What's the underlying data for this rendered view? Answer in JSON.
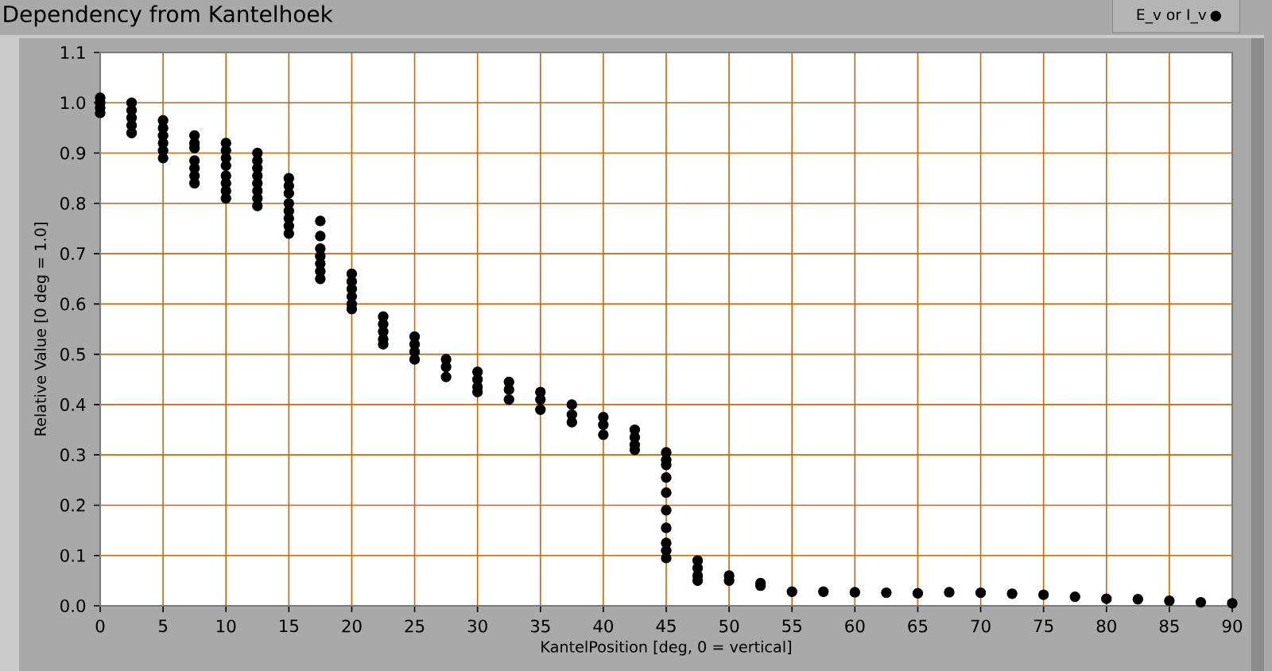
{
  "chart_data": {
    "type": "scatter",
    "title": "Dependency from Kantelhoek",
    "xlabel": "KantelPosition [deg, 0 = vertical]",
    "ylabel": "Relative Value [0 deg = 1.0]",
    "series": [
      {
        "name": "E_v or I_v",
        "color": "#000000",
        "x": [
          0,
          0,
          0,
          0,
          2.5,
          2.5,
          2.5,
          2.5,
          2.5,
          5,
          5,
          5,
          5,
          5,
          5,
          7.5,
          7.5,
          7.5,
          7.5,
          7.5,
          7.5,
          7.5,
          10,
          10,
          10,
          10,
          10,
          10,
          10,
          10,
          12.5,
          12.5,
          12.5,
          12.5,
          12.5,
          12.5,
          12.5,
          12.5,
          15,
          15,
          15,
          15,
          15,
          15,
          15,
          15,
          17.5,
          17.5,
          17.5,
          17.5,
          17.5,
          17.5,
          17.5,
          20,
          20,
          20,
          20,
          20,
          20,
          22.5,
          22.5,
          22.5,
          22.5,
          22.5,
          25,
          25,
          25,
          25,
          27.5,
          27.5,
          27.5,
          30,
          30,
          30,
          30,
          32.5,
          32.5,
          32.5,
          35,
          35,
          35,
          37.5,
          37.5,
          37.5,
          40,
          40,
          40,
          42.5,
          42.5,
          42.5,
          42.5,
          45,
          45,
          45,
          45,
          45,
          45,
          45,
          45,
          45,
          45,
          47.5,
          47.5,
          47.5,
          47.5,
          50,
          50,
          52.5,
          52.5,
          55,
          57.5,
          60,
          62.5,
          65,
          67.5,
          70,
          72.5,
          75,
          77.5,
          80,
          82.5,
          85,
          87.5,
          90
        ],
        "values": [
          0.98,
          0.99,
          1.0,
          1.01,
          0.94,
          0.955,
          0.97,
          0.985,
          1.0,
          0.89,
          0.905,
          0.92,
          0.935,
          0.95,
          0.965,
          0.84,
          0.855,
          0.87,
          0.885,
          0.91,
          0.92,
          0.935,
          0.81,
          0.825,
          0.84,
          0.855,
          0.875,
          0.89,
          0.905,
          0.92,
          0.795,
          0.81,
          0.825,
          0.84,
          0.855,
          0.87,
          0.885,
          0.9,
          0.74,
          0.755,
          0.77,
          0.785,
          0.8,
          0.82,
          0.835,
          0.85,
          0.65,
          0.665,
          0.68,
          0.695,
          0.71,
          0.735,
          0.765,
          0.59,
          0.6,
          0.615,
          0.63,
          0.645,
          0.66,
          0.52,
          0.53,
          0.545,
          0.56,
          0.575,
          0.49,
          0.505,
          0.52,
          0.535,
          0.455,
          0.475,
          0.49,
          0.425,
          0.435,
          0.45,
          0.465,
          0.41,
          0.43,
          0.445,
          0.39,
          0.41,
          0.425,
          0.365,
          0.38,
          0.4,
          0.34,
          0.36,
          0.375,
          0.31,
          0.32,
          0.335,
          0.35,
          0.095,
          0.11,
          0.125,
          0.155,
          0.19,
          0.225,
          0.255,
          0.28,
          0.29,
          0.305,
          0.05,
          0.06,
          0.075,
          0.09,
          0.05,
          0.06,
          0.04,
          0.045,
          0.028,
          0.028,
          0.027,
          0.026,
          0.025,
          0.027,
          0.026,
          0.024,
          0.022,
          0.018,
          0.014,
          0.013,
          0.01,
          0.007,
          0.005
        ]
      }
    ],
    "xlim": [
      0,
      90
    ],
    "ylim": [
      0,
      1.1
    ],
    "xticks": [
      0,
      5,
      10,
      15,
      20,
      25,
      30,
      35,
      40,
      45,
      50,
      55,
      60,
      65,
      70,
      75,
      80,
      85,
      90
    ],
    "yticks": [
      {
        "value": 0,
        "label": "0.0"
      },
      0.1,
      0.2,
      0.3,
      0.4,
      0.5,
      0.6,
      0.7,
      0.8,
      0.9,
      {
        "value": 1,
        "label": "1.0"
      },
      1.1
    ],
    "grid": true,
    "legend": "top right",
    "marker": "circle"
  }
}
